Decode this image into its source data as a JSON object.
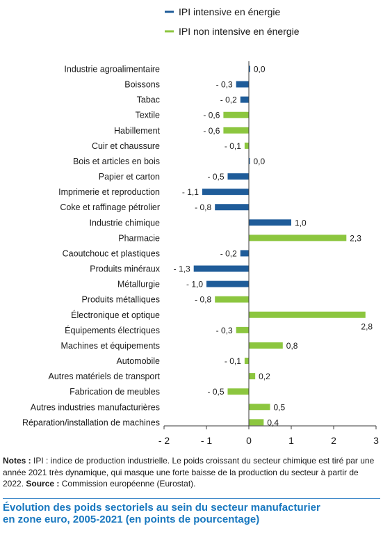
{
  "chart_data": {
    "type": "bar",
    "orientation": "horizontal",
    "title": "Évolution des poids sectoriels au sein du secteur manufacturier en zone euro, 2005-2021 (en points de pourcentage)",
    "title_lines": [
      "Évolution des poids sectoriels au sein du secteur manufacturier",
      "en zone euro, 2005-2021 (en points de pourcentage)"
    ],
    "legend_position": "top",
    "series_defs": [
      {
        "name": "IPI intensive en énergie",
        "color": "#1f5c99"
      },
      {
        "name": "IPI non intensive en énergie",
        "color": "#8cc63f"
      }
    ],
    "categories": [
      "Industrie agroalimentaire",
      "Boissons",
      "Tabac",
      "Textile",
      "Habillement",
      "Cuir et chaussure",
      "Bois et articles en bois",
      "Papier et carton",
      "Imprimerie et reproduction",
      "Coke et raffinage pétrolier",
      "Industrie chimique",
      "Pharmacie",
      "Caoutchouc et plastiques",
      "Produits minéraux",
      "Métallurgie",
      "Produits métalliques",
      "Électronique et optique",
      "Équipements électriques",
      "Machines et équipements",
      "Automobile",
      "Autres matériels de transport",
      "Fabrication de meubles",
      "Autres industries manufacturières",
      "Réparation/installation de machines"
    ],
    "values": [
      0.03,
      -0.3,
      -0.2,
      -0.6,
      -0.6,
      -0.1,
      0.02,
      -0.5,
      -1.1,
      -0.8,
      1.0,
      2.3,
      -0.2,
      -1.3,
      -1.0,
      -0.8,
      2.75,
      -0.3,
      0.8,
      -0.1,
      0.15,
      -0.5,
      0.5,
      0.35
    ],
    "series_index": [
      0,
      0,
      0,
      1,
      1,
      1,
      0,
      0,
      0,
      0,
      0,
      1,
      0,
      0,
      0,
      1,
      1,
      1,
      1,
      1,
      1,
      1,
      1,
      1
    ],
    "value_labels": [
      "0,0",
      "- 0,3",
      "- 0,2",
      "- 0,6",
      "- 0,6",
      "- 0,1",
      "0,0",
      "- 0,5",
      "- 1,1",
      "- 0,8",
      "1,0",
      "2,3",
      "- 0,2",
      "- 1,3",
      "- 1,0",
      "- 0,8",
      "2,8",
      "- 0,3",
      "0,8",
      "- 0,1",
      "0,2",
      "- 0,5",
      "0,5",
      "0,4"
    ],
    "xlim": [
      -2,
      3
    ],
    "x_ticks": [
      -2,
      -1,
      0,
      1,
      2,
      3
    ],
    "x_tick_labels": [
      "- 2",
      "- 1",
      "0",
      "1",
      "2",
      "3"
    ],
    "grid": false
  },
  "notes": {
    "notes_label": "Notes :",
    "notes_text": " IPI : indice de production industrielle. Le poids croissant du secteur chimique est tiré par une année 2021 très dynamique, qui masque une forte baisse de la production du secteur à partir de 2022.",
    "source_label": "Source :",
    "source_text": " Commission européenne (Eurostat)."
  }
}
